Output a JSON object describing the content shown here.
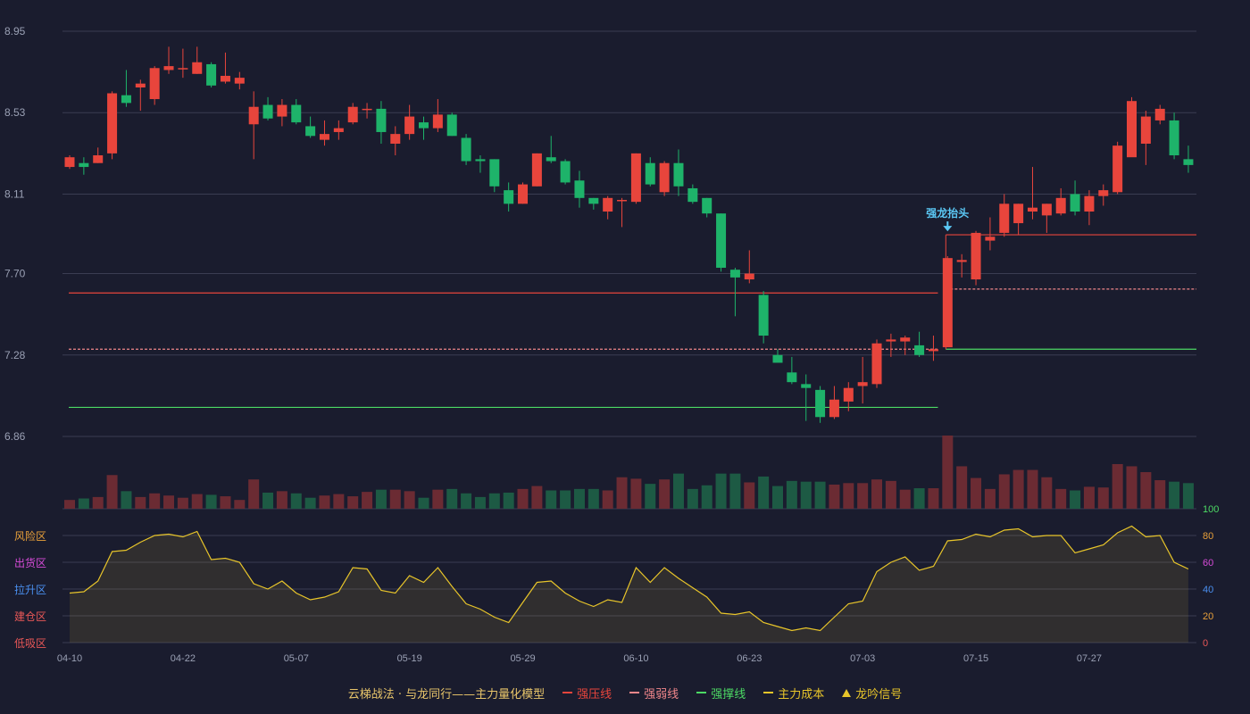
{
  "colors": {
    "background": "#1a1c2e",
    "up": "#e8453c",
    "down": "#1eb36a",
    "up_volume": "#6b2b33",
    "down_volume": "#1d5a44",
    "grid": "#3a3d52",
    "axis_text": "#9aa0b4",
    "pressure": "#e8453c",
    "weak": "#f0868a",
    "support": "#4cd964",
    "cost": "#e8c52a",
    "signal": "#5bc8f5"
  },
  "chart_data": {
    "type": "candlestick",
    "price_axis": {
      "ticks": [
        "8.95",
        "8.53",
        "8.11",
        "7.70",
        "7.28",
        "6.86"
      ],
      "range": [
        6.86,
        8.95
      ]
    },
    "x_ticks": [
      {
        "index": 0,
        "label": "04-10"
      },
      {
        "index": 8,
        "label": "04-22"
      },
      {
        "index": 16,
        "label": "05-07"
      },
      {
        "index": 24,
        "label": "05-19"
      },
      {
        "index": 32,
        "label": "05-29"
      },
      {
        "index": 40,
        "label": "06-10"
      },
      {
        "index": 48,
        "label": "06-23"
      },
      {
        "index": 56,
        "label": "07-03"
      },
      {
        "index": 64,
        "label": "07-15"
      },
      {
        "index": 72,
        "label": "07-27"
      }
    ],
    "candles": [
      [
        8.25,
        8.3,
        8.31,
        8.24
      ],
      [
        8.27,
        8.25,
        8.3,
        8.21
      ],
      [
        8.27,
        8.31,
        8.35,
        8.27
      ],
      [
        8.32,
        8.63,
        8.64,
        8.29
      ],
      [
        8.62,
        8.58,
        8.75,
        8.56
      ],
      [
        8.66,
        8.68,
        8.7,
        8.54
      ],
      [
        8.6,
        8.76,
        8.77,
        8.57
      ],
      [
        8.75,
        8.77,
        8.87,
        8.73
      ],
      [
        8.76,
        8.76,
        8.86,
        8.71
      ],
      [
        8.73,
        8.79,
        8.87,
        8.73
      ],
      [
        8.78,
        8.67,
        8.79,
        8.66
      ],
      [
        8.69,
        8.72,
        8.84,
        8.68
      ],
      [
        8.68,
        8.71,
        8.74,
        8.65
      ],
      [
        8.47,
        8.56,
        8.64,
        8.29
      ],
      [
        8.57,
        8.5,
        8.61,
        8.49
      ],
      [
        8.51,
        8.57,
        8.6,
        8.46
      ],
      [
        8.57,
        8.48,
        8.6,
        8.47
      ],
      [
        8.46,
        8.41,
        8.51,
        8.4
      ],
      [
        8.39,
        8.42,
        8.49,
        8.36
      ],
      [
        8.43,
        8.45,
        8.49,
        8.39
      ],
      [
        8.48,
        8.56,
        8.58,
        8.47
      ],
      [
        8.55,
        8.55,
        8.58,
        8.5
      ],
      [
        8.55,
        8.43,
        8.59,
        8.37
      ],
      [
        8.37,
        8.42,
        8.46,
        8.31
      ],
      [
        8.42,
        8.51,
        8.57,
        8.39
      ],
      [
        8.48,
        8.45,
        8.51,
        8.39
      ],
      [
        8.45,
        8.52,
        8.6,
        8.43
      ],
      [
        8.52,
        8.41,
        8.53,
        8.41
      ],
      [
        8.4,
        8.28,
        8.42,
        8.26
      ],
      [
        8.29,
        8.28,
        8.31,
        8.22
      ],
      [
        8.29,
        8.15,
        8.29,
        8.12
      ],
      [
        8.13,
        8.06,
        8.17,
        8.02
      ],
      [
        8.06,
        8.16,
        8.17,
        8.06
      ],
      [
        8.15,
        8.32,
        8.32,
        8.15
      ],
      [
        8.3,
        8.28,
        8.41,
        8.27
      ],
      [
        8.28,
        8.17,
        8.29,
        8.16
      ],
      [
        8.18,
        8.09,
        8.23,
        8.04
      ],
      [
        8.09,
        8.06,
        8.09,
        8.03
      ],
      [
        8.02,
        8.09,
        8.1,
        7.98
      ],
      [
        8.08,
        8.08,
        8.09,
        7.94
      ],
      [
        8.07,
        8.32,
        8.32,
        8.06
      ],
      [
        8.27,
        8.16,
        8.3,
        8.15
      ],
      [
        8.12,
        8.27,
        8.28,
        8.1
      ],
      [
        8.27,
        8.15,
        8.34,
        8.1
      ],
      [
        8.14,
        8.07,
        8.16,
        8.06
      ],
      [
        8.09,
        8.01,
        8.09,
        7.99
      ],
      [
        8.01,
        7.73,
        8.01,
        7.71
      ],
      [
        7.72,
        7.68,
        7.73,
        7.48
      ],
      [
        7.67,
        7.7,
        7.82,
        7.65
      ],
      [
        7.59,
        7.38,
        7.61,
        7.34
      ],
      [
        7.28,
        7.24,
        7.31,
        7.27
      ],
      [
        7.19,
        7.14,
        7.27,
        7.13
      ],
      [
        7.13,
        7.11,
        7.18,
        6.94
      ],
      [
        7.1,
        6.96,
        7.12,
        6.93
      ],
      [
        6.96,
        7.05,
        7.12,
        6.95
      ],
      [
        7.04,
        7.11,
        7.14,
        6.99
      ],
      [
        7.12,
        7.14,
        7.27,
        7.03
      ],
      [
        7.13,
        7.34,
        7.36,
        7.11
      ],
      [
        7.35,
        7.36,
        7.39,
        7.27
      ],
      [
        7.35,
        7.37,
        7.38,
        7.28
      ],
      [
        7.33,
        7.28,
        7.4,
        7.27
      ],
      [
        7.3,
        7.31,
        7.38,
        7.25
      ],
      [
        7.32,
        7.78,
        7.79,
        7.32
      ],
      [
        7.76,
        7.77,
        7.8,
        7.68
      ],
      [
        7.67,
        7.91,
        7.92,
        7.64
      ],
      [
        7.87,
        7.89,
        7.99,
        7.82
      ],
      [
        7.91,
        8.06,
        8.11,
        7.89
      ],
      [
        7.96,
        8.06,
        8.06,
        7.9
      ],
      [
        8.02,
        8.04,
        8.25,
        7.98
      ],
      [
        8.0,
        8.06,
        8.06,
        7.91
      ],
      [
        8.01,
        8.09,
        8.14,
        8.0
      ],
      [
        8.11,
        8.02,
        8.18,
        8.0
      ],
      [
        8.02,
        8.1,
        8.13,
        7.95
      ],
      [
        8.1,
        8.13,
        8.16,
        8.05
      ],
      [
        8.12,
        8.36,
        8.38,
        8.11
      ],
      [
        8.3,
        8.59,
        8.61,
        8.31
      ],
      [
        8.37,
        8.51,
        8.54,
        8.26
      ],
      [
        8.49,
        8.55,
        8.57,
        8.47
      ],
      [
        8.49,
        8.31,
        8.53,
        8.29
      ],
      [
        8.29,
        8.26,
        8.36,
        8.22
      ]
    ],
    "volume_relative": [
      0.12,
      0.14,
      0.16,
      0.46,
      0.24,
      0.16,
      0.21,
      0.18,
      0.15,
      0.2,
      0.19,
      0.17,
      0.12,
      0.4,
      0.22,
      0.24,
      0.21,
      0.15,
      0.18,
      0.2,
      0.17,
      0.23,
      0.26,
      0.26,
      0.24,
      0.15,
      0.26,
      0.27,
      0.21,
      0.16,
      0.21,
      0.22,
      0.27,
      0.31,
      0.25,
      0.25,
      0.27,
      0.27,
      0.25,
      0.43,
      0.41,
      0.34,
      0.4,
      0.48,
      0.27,
      0.32,
      0.48,
      0.48,
      0.36,
      0.44,
      0.31,
      0.38,
      0.37,
      0.37,
      0.33,
      0.35,
      0.35,
      0.4,
      0.38,
      0.26,
      0.28,
      0.28,
      1.0,
      0.58,
      0.42,
      0.27,
      0.47,
      0.53,
      0.53,
      0.43,
      0.27,
      0.25,
      0.3,
      0.29,
      0.61,
      0.58,
      0.5,
      0.39,
      0.37,
      0.35
    ],
    "indicator_axis": {
      "ticks": [
        "100",
        "80",
        "60",
        "40",
        "20",
        "0"
      ],
      "range": [
        0,
        100
      ]
    },
    "indicator_zones": [
      {
        "label": "风险区",
        "color": "#e8a03a",
        "level": 80
      },
      {
        "label": "出货区",
        "color": "#d64bd8",
        "level": 60
      },
      {
        "label": "拉升区",
        "color": "#4a8ff0",
        "level": 40
      },
      {
        "label": "建仓区",
        "color": "#e85757",
        "level": 20
      },
      {
        "label": "低吸区",
        "color": "#e85757",
        "level": 0
      }
    ],
    "indicator_values": [
      37,
      38,
      46,
      68,
      69,
      75,
      80,
      81,
      79,
      83,
      62,
      63,
      60,
      44,
      40,
      46,
      37,
      32,
      34,
      38,
      56,
      55,
      39,
      37,
      50,
      45,
      56,
      42,
      29,
      25,
      19,
      15,
      30,
      45,
      46,
      37,
      31,
      27,
      32,
      30,
      56,
      45,
      56,
      48,
      41,
      34,
      22,
      21,
      23,
      15,
      12,
      9,
      11,
      9,
      19,
      29,
      31,
      53,
      60,
      64,
      54,
      57,
      76,
      77,
      81,
      79,
      84,
      85,
      79,
      80,
      80,
      67,
      70,
      73,
      82,
      87,
      79,
      80,
      60,
      55
    ],
    "levels": {
      "pressure_1": 7.6,
      "weak_1": 7.31,
      "support_1": 7.01,
      "pressure_2": 7.9,
      "weak_2": 7.62,
      "support_2": 7.31
    },
    "signal": {
      "index": 62,
      "text": "强龙抬头"
    }
  },
  "legend": {
    "title": "云梯战法 · 与龙同行——主力量化模型",
    "items": [
      {
        "label": "强压线",
        "color": "#e8453c",
        "style": "line"
      },
      {
        "label": "强弱线",
        "color": "#f0868a",
        "style": "dash"
      },
      {
        "label": "强撑线",
        "color": "#4cd964",
        "style": "line"
      },
      {
        "label": "主力成本",
        "color": "#e8c52a",
        "style": "dash"
      },
      {
        "label": "龙吟信号",
        "color": "#e8c52a",
        "style": "tri"
      }
    ]
  }
}
